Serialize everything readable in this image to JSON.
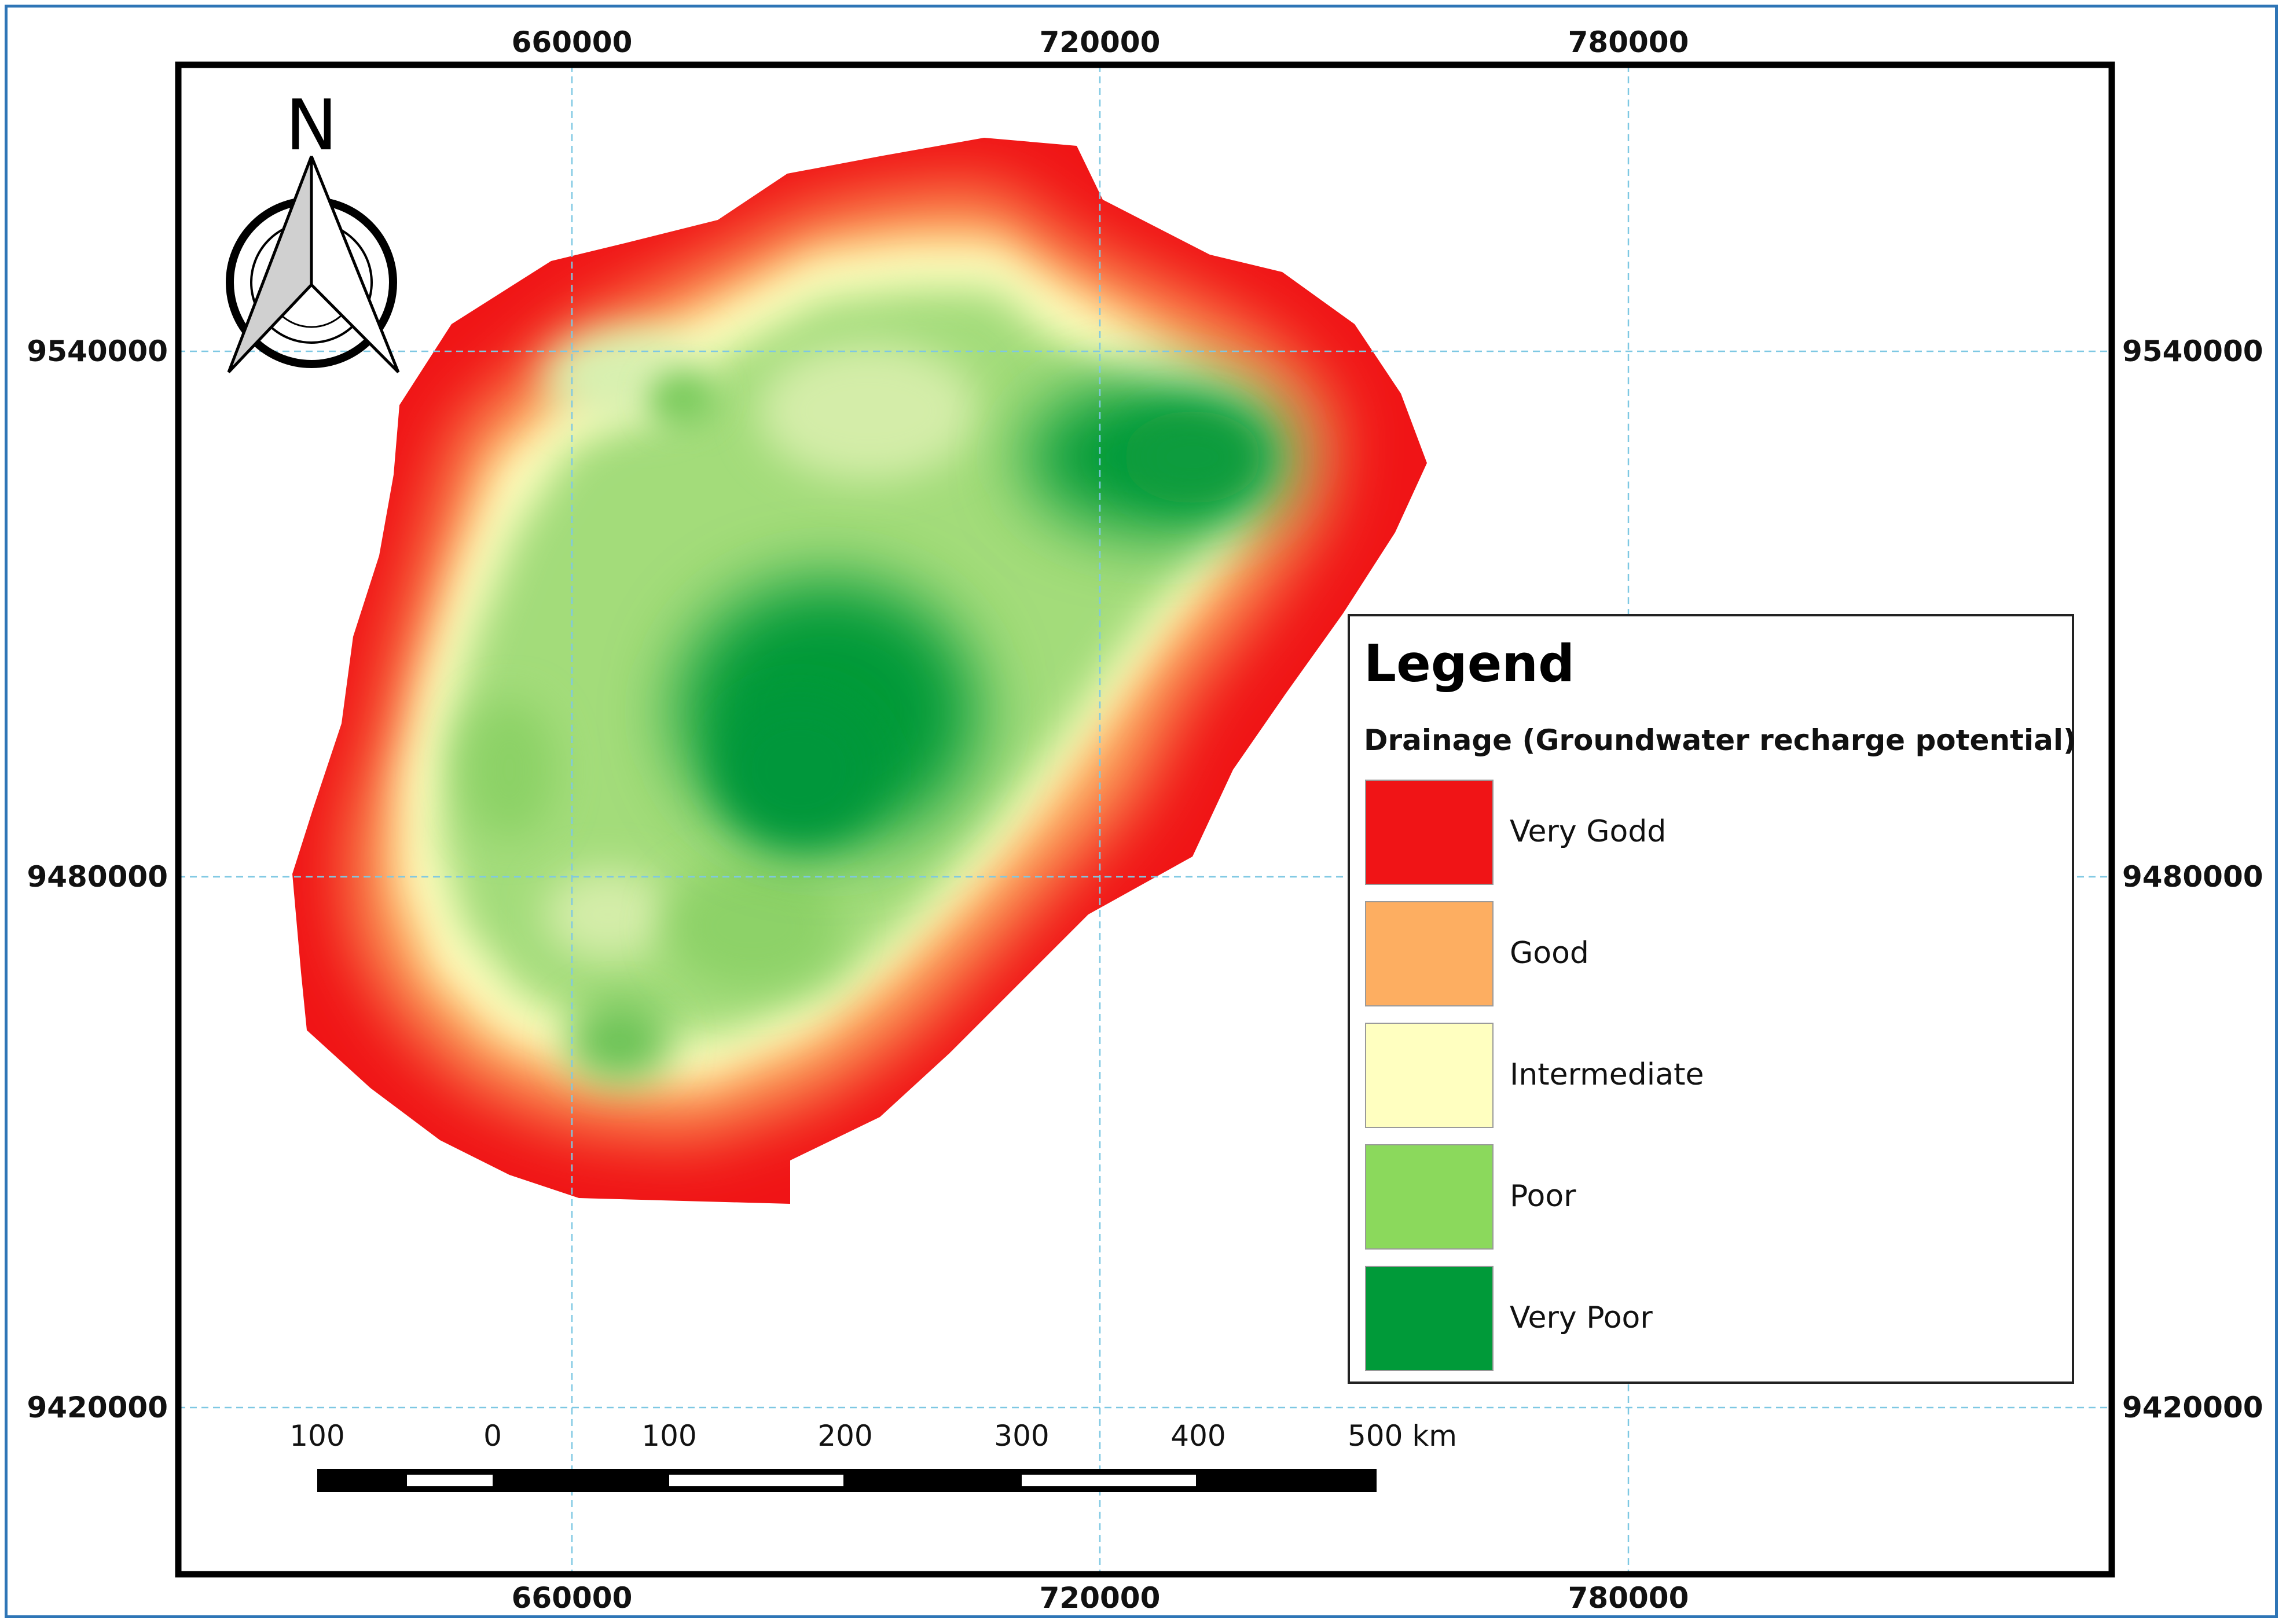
{
  "map": {
    "x_ticks": [
      "660000",
      "720000",
      "780000"
    ],
    "y_ticks": [
      "9540000",
      "9480000",
      "9420000"
    ],
    "north_arrow_label": "N",
    "north_arrow_icon": "north-arrow-icon",
    "scale_bar": {
      "labels": [
        "100",
        "0",
        "100",
        "200",
        "300",
        "400",
        "500 km"
      ]
    },
    "colors": {
      "frame": "#2e75b6",
      "grid": "#7ec8e3",
      "very_good": "#f01416",
      "good": "#fdae61",
      "intermediate": "#ffffc0",
      "poor": "#8bd95c",
      "very_poor": "#009a39"
    }
  },
  "legend": {
    "title": "Legend",
    "subtitle": "Drainage (Groundwater recharge potential)",
    "items": [
      {
        "label": "Very Godd",
        "color": "#f01416"
      },
      {
        "label": "Good",
        "color": "#fdae61"
      },
      {
        "label": "Intermediate",
        "color": "#ffffc0"
      },
      {
        "label": "Poor",
        "color": "#8bd95c"
      },
      {
        "label": "Very Poor",
        "color": "#009a39"
      }
    ]
  }
}
